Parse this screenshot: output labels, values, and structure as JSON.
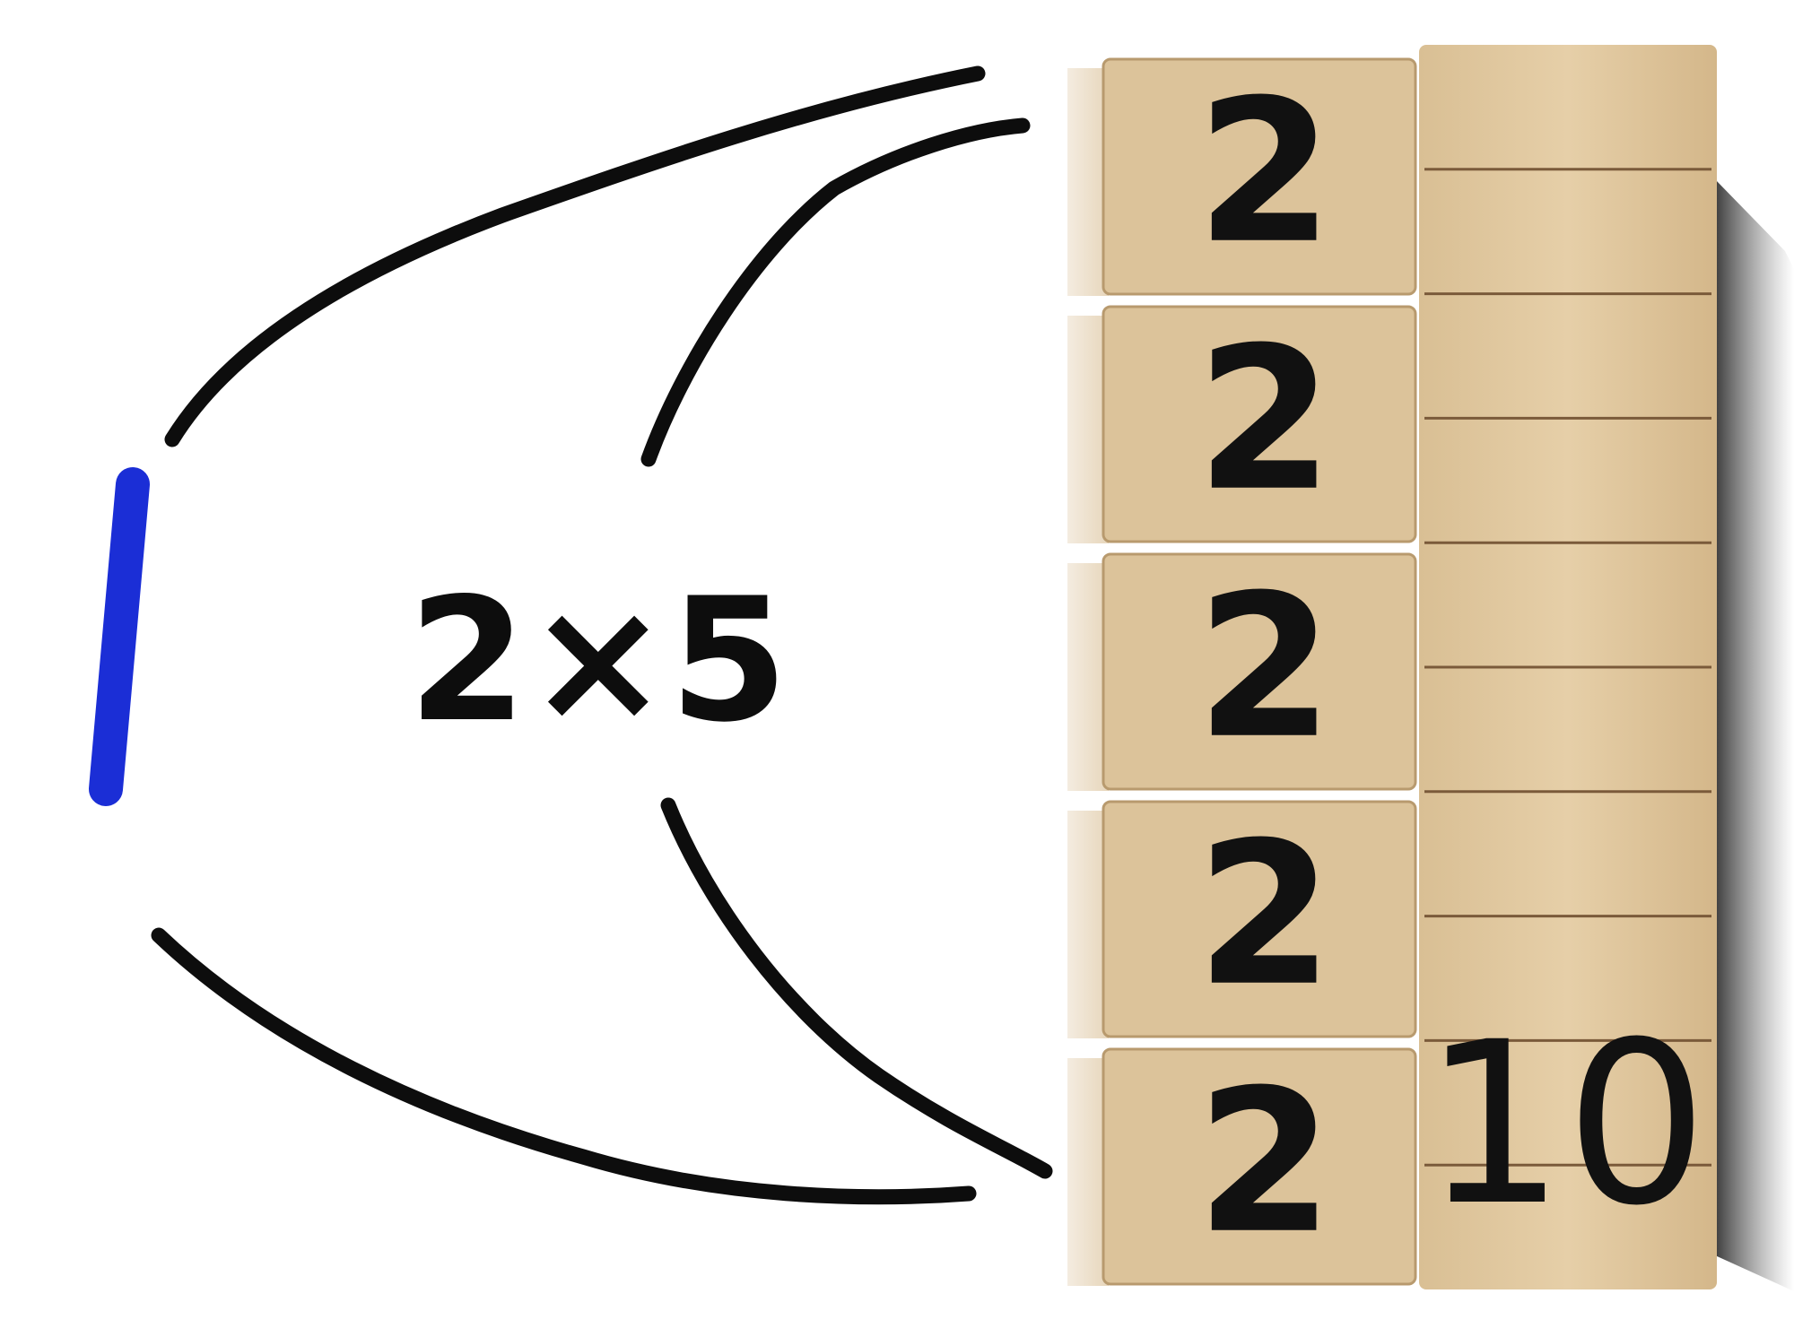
{
  "whiteboard": {
    "one_mark": "1",
    "expression": "2×5"
  },
  "cubes": [
    {
      "label": "2"
    },
    {
      "label": "2"
    },
    {
      "label": "2"
    },
    {
      "label": "2"
    },
    {
      "label": "2"
    }
  ],
  "rod": {
    "label": "10",
    "units": 10
  },
  "colors": {
    "marker_black": "#0d0d0d",
    "marker_blue": "#1b2ed6",
    "wood": "#e2c9a1",
    "wood_dark": "#cfb083",
    "shadow": "#2b2b2b"
  }
}
